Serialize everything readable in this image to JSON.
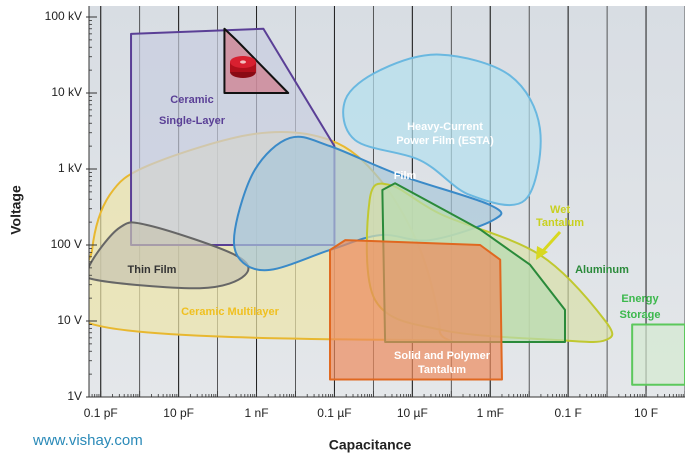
{
  "chart_data": {
    "type": "region",
    "x_label": "Capacitance",
    "y_label": "Voltage",
    "footer": "www.vishay.com",
    "xlog": true,
    "ylog": true,
    "grid": true,
    "xlim": [
      5e-14,
      100
    ],
    "ylim": [
      1,
      100000
    ],
    "xticks": [
      {
        "value": 1e-13,
        "label": "0.1 pF"
      },
      {
        "value": 1e-11,
        "label": "10 pF"
      },
      {
        "value": 1e-09,
        "label": "1 nF"
      },
      {
        "value": 1e-07,
        "label": "0.1 µF"
      },
      {
        "value": 1e-05,
        "label": "10 µF"
      },
      {
        "value": 0.001,
        "label": "1 mF"
      },
      {
        "value": 0.1,
        "label": "0.1 F"
      },
      {
        "value": 10,
        "label": "10 F"
      }
    ],
    "yticks": [
      {
        "value": 1,
        "label": "1V"
      },
      {
        "value": 10,
        "label": "10 V"
      },
      {
        "value": 100,
        "label": "100 V"
      },
      {
        "value": 1000,
        "label": "1 kV"
      },
      {
        "value": 10000,
        "label": "10 kV"
      },
      {
        "value": 100000,
        "label": "100 kV"
      }
    ],
    "regions": [
      {
        "label": [
          "Ceramic Multilayer"
        ],
        "color": "#e8b830",
        "fill": "#eee6a8",
        "label_color": "#f0c020",
        "smooth": true,
        "x": [
          6e-14,
          1.7e-13,
          1.8e-12,
          9e-10,
          7.7e-08,
          1.5e-06,
          1.6e-05,
          5e-05,
          1.6e-05,
          7e-14
        ],
        "y": [
          86,
          455,
          1130,
          2900,
          2400,
          720,
          86,
          7.6,
          5.6,
          8.9
        ]
      },
      {
        "label": [
          "Ceramic",
          "Single-Layer"
        ],
        "color": "#5a3f96",
        "fill": "#c8cde0",
        "label_color": "#5a3f96",
        "smooth": false,
        "x": [
          6e-13,
          1.5e-09,
          1e-07,
          1e-07,
          6e-13
        ],
        "y": [
          60000,
          70000,
          2000,
          100,
          100
        ]
      },
      {
        "color": "#111111",
        "fill": "#d07a8a",
        "smooth": false,
        "x": [
          1.5e-10,
          3e-10,
          6.5e-09,
          1.5e-10
        ],
        "y": [
          70000,
          50000,
          10000,
          10000
        ]
      },
      {
        "label": [
          "Thin Film"
        ],
        "color": "#666666",
        "fill": "#c8c4b0",
        "label_color": "#333333",
        "smooth": true,
        "x": [
          5.3e-14,
          3.1e-13,
          1.8e-12,
          2.8e-10,
          5e-10,
          3.5e-11,
          7e-14
        ],
        "y": [
          55,
          170,
          180,
          74,
          40,
          27,
          35
        ]
      },
      {
        "label": [
          "Heavy-Current",
          "Power Film (ESTA)"
        ],
        "color": "#6ab8e0",
        "fill": "#b4e0ee",
        "label_color": "#ffffff",
        "smooth": true,
        "x": [
          1.9e-07,
          1.5e-06,
          5e-05,
          0.0032,
          0.019,
          0.0078,
          0.0003,
          1.6e-05,
          3.4e-07
        ],
        "y": [
          8100,
          20000,
          32000,
          17000,
          3300,
          390,
          455,
          1300,
          2400
        ]
      },
      {
        "label": [
          "Film"
        ],
        "color": "#3a8ac8",
        "fill": "#a8c8d8",
        "label_color": "#ffffff",
        "smooth": true,
        "x": [
          2.8e-10,
          9e-10,
          7.2e-09,
          7.7e-08,
          4.8e-06,
          0.001,
          0.0012,
          2.8e-05,
          1.5e-06,
          7.7e-08,
          2.2e-09,
          3.8e-10
        ],
        "y": [
          160,
          970,
          2560,
          2000,
          830,
          335,
          213,
          116,
          135,
          86,
          47,
          64
        ]
      },
      {
        "label": [
          "Wet",
          "Tantalum"
        ],
        "color": "#c0c830",
        "fill": "#d8e0a8",
        "label_color": "#c8d020",
        "smooth": true,
        "x": [
          8e-07,
          2.7e-06,
          5.8e-05,
          0.019,
          0.9,
          0.9,
          0.06,
          5.8e-05,
          1.1e-06
        ],
        "y": [
          390,
          615,
          250,
          74,
          10,
          5.6,
          5.6,
          7.6,
          19
        ]
      },
      {
        "label": [
          "Aluminum"
        ],
        "color": "#2a8a3a",
        "fill": "#b8dcb0",
        "label_color": "#2a8a3a",
        "smooth": false,
        "x": [
          1.7e-06,
          3.6e-06,
          0.00055,
          0.0105,
          0.083,
          0.083,
          2e-06
        ],
        "y": [
          530,
          650,
          160,
          55,
          14,
          5.3,
          5.3
        ]
      },
      {
        "label": [
          "Solid and Polymer",
          "Tantalum"
        ],
        "color": "#e06820",
        "fill": "#ec8a5c",
        "label_color": "#ffffff",
        "smooth": false,
        "x": [
          7.7e-08,
          1.9e-07,
          0.00055,
          0.0018,
          0.002,
          7.7e-08
        ],
        "y": [
          86,
          116,
          100,
          64,
          1.7,
          1.7
        ]
      },
      {
        "label": [
          "Energy",
          "Storage"
        ],
        "color": "#5cc85c",
        "fill": "#d4ead0",
        "label_color": "#3cb84c",
        "smooth": false,
        "x": [
          4.4,
          100,
          100,
          4.4
        ],
        "y": [
          9,
          9,
          1.45,
          1.45
        ]
      }
    ]
  }
}
